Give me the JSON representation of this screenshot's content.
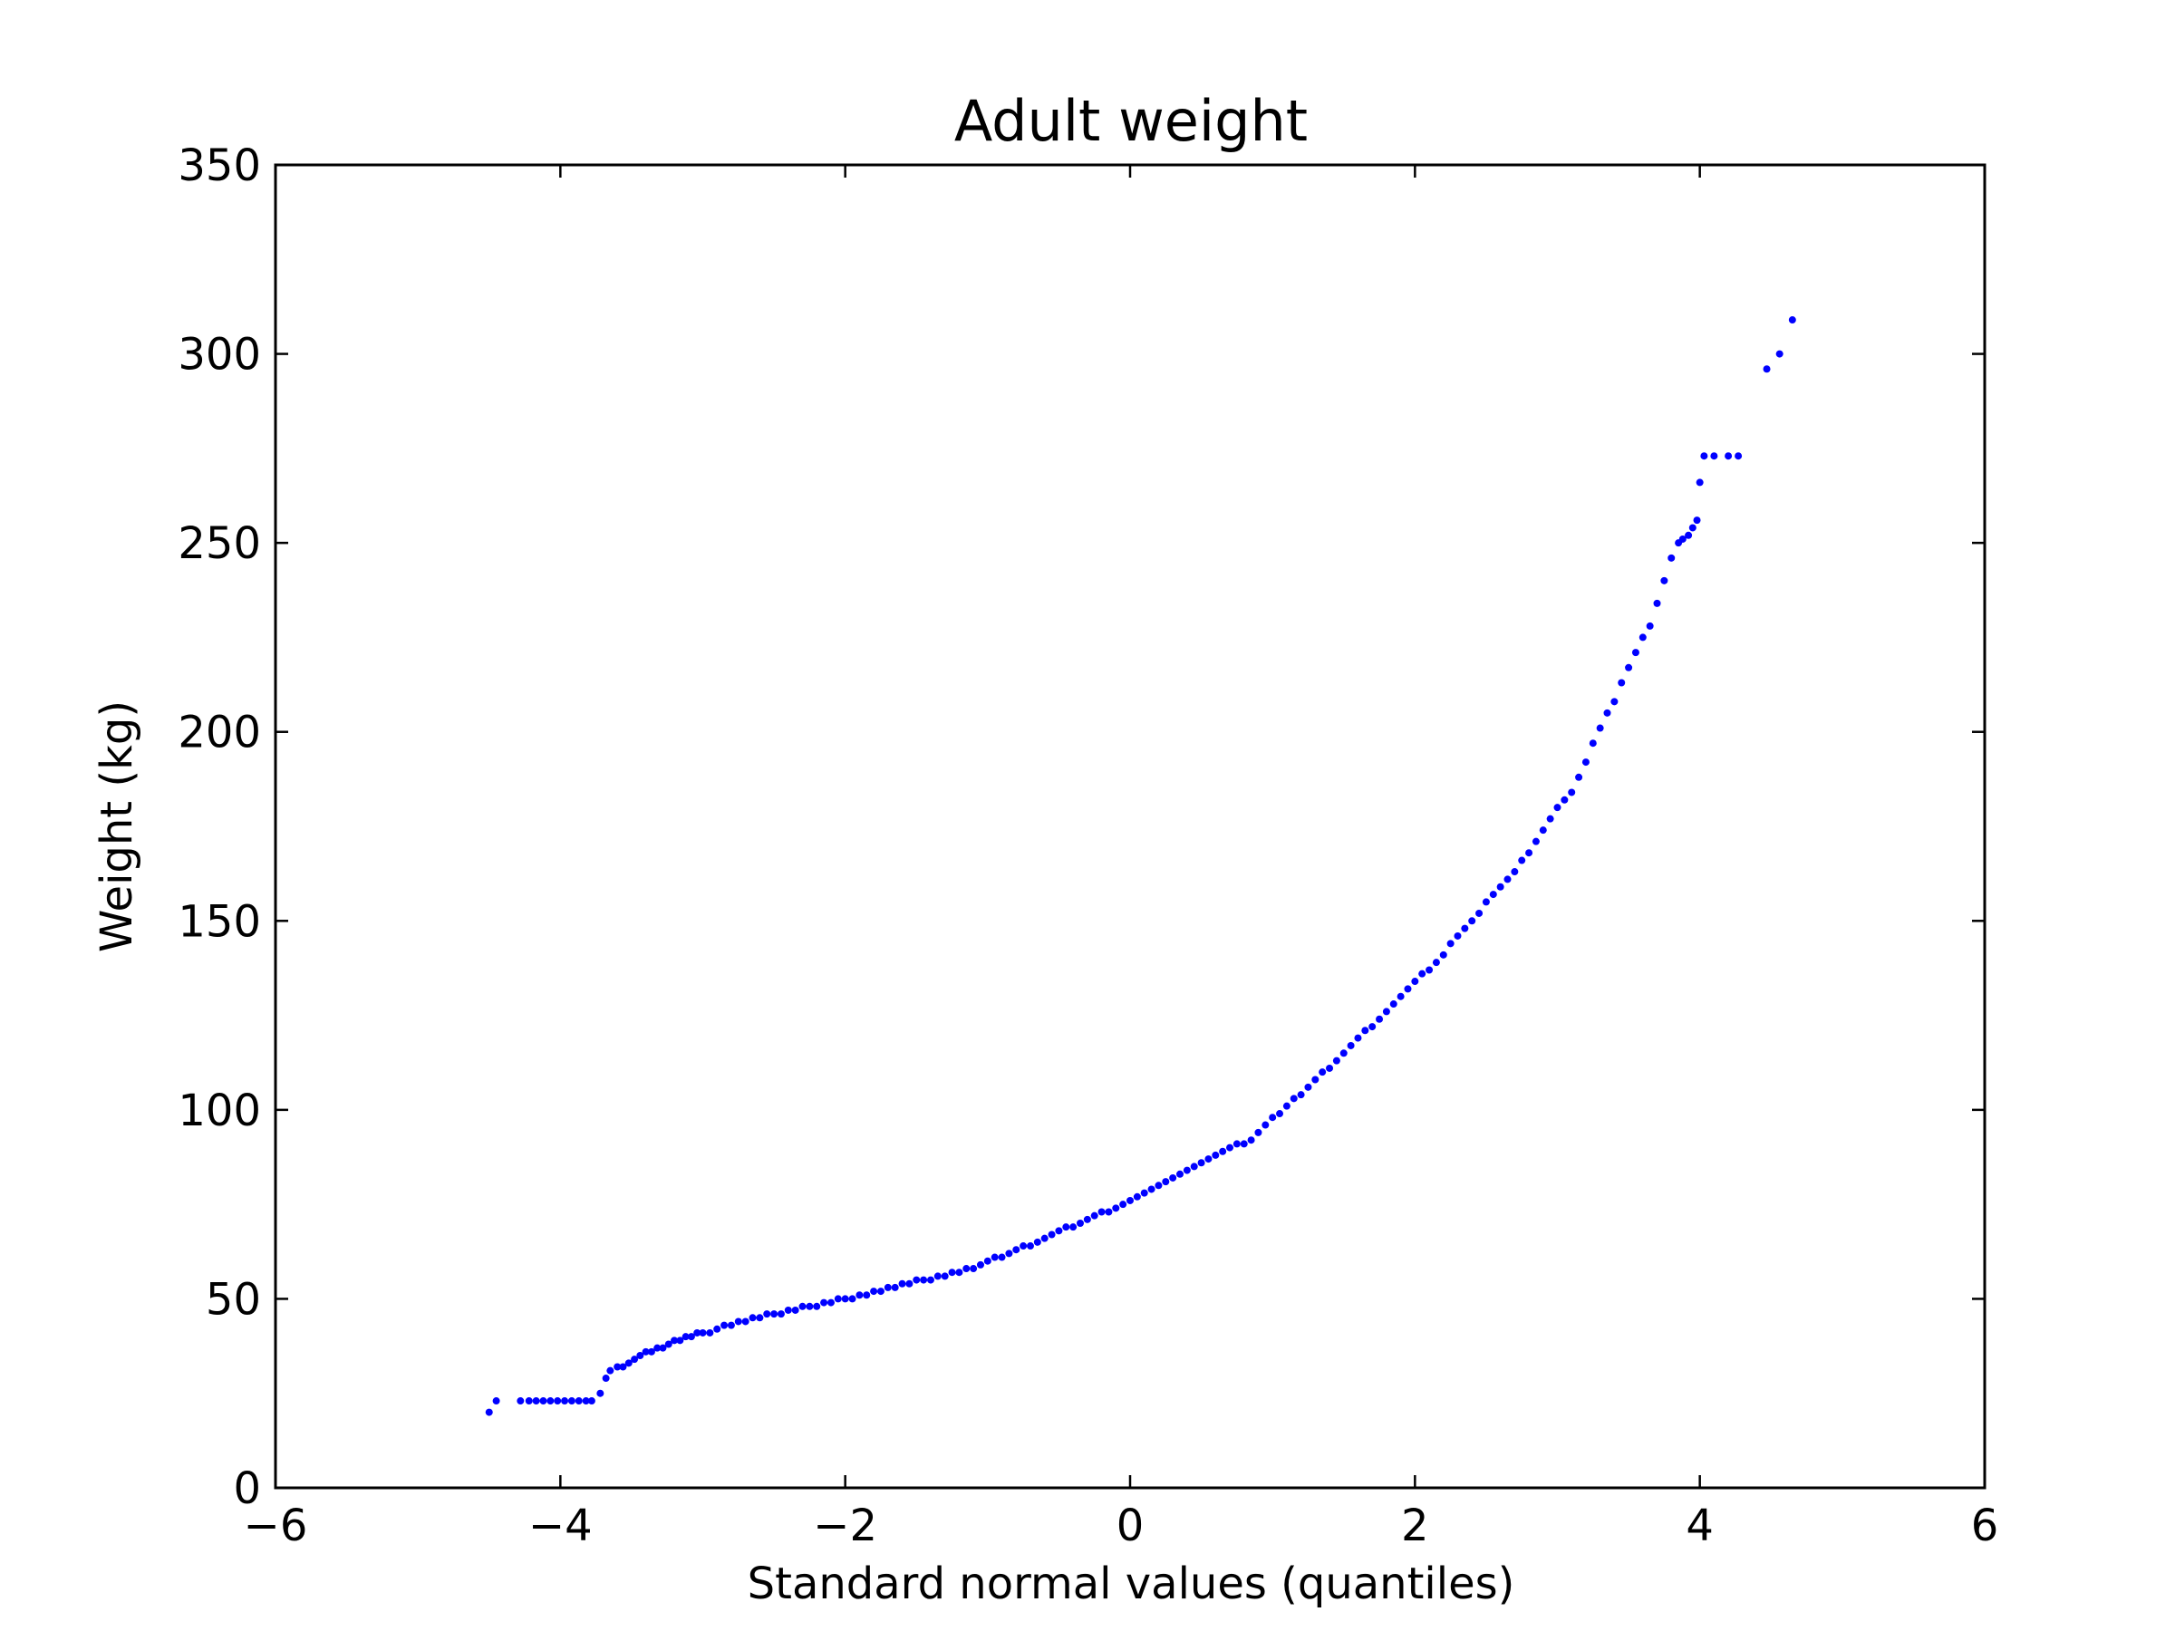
{
  "chart_data": {
    "type": "scatter",
    "title": "Adult weight",
    "xlabel": "Standard normal values (quantiles)",
    "ylabel": "Weight (kg)",
    "xlim": [
      -6,
      6
    ],
    "ylim": [
      0,
      350
    ],
    "x_ticks": [
      -6,
      -4,
      -2,
      0,
      2,
      4,
      6
    ],
    "x_tick_labels": [
      "−6",
      "−4",
      "−2",
      "0",
      "2",
      "4",
      "6"
    ],
    "y_ticks": [
      0,
      50,
      100,
      150,
      200,
      250,
      300,
      350
    ],
    "y_tick_labels": [
      "0",
      "50",
      "100",
      "150",
      "200",
      "250",
      "300",
      "350"
    ],
    "grid": false,
    "legend": "none",
    "marker_color": "#0000ff",
    "series": [
      {
        "x": [
          -4.5,
          -4.45,
          -4.28,
          -4.22,
          -4.17,
          -4.12,
          -4.07,
          -4.02,
          -3.97,
          -3.92,
          -3.87,
          -3.82,
          -3.78,
          -3.72,
          -3.68,
          -3.65,
          -3.6,
          -3.56,
          -3.52,
          -3.48,
          -3.44,
          -3.4,
          -3.36,
          -3.32,
          -3.28,
          -3.24,
          -3.2,
          -3.16,
          -3.12,
          -3.08,
          -3.04,
          -3.0,
          -2.95,
          -2.9,
          -2.85,
          -2.8,
          -2.75,
          -2.7,
          -2.65,
          -2.6,
          -2.55,
          -2.5,
          -2.45,
          -2.4,
          -2.35,
          -2.3,
          -2.25,
          -2.2,
          -2.15,
          -2.1,
          -2.05,
          -2.0,
          -1.95,
          -1.9,
          -1.85,
          -1.8,
          -1.75,
          -1.7,
          -1.65,
          -1.6,
          -1.55,
          -1.5,
          -1.45,
          -1.4,
          -1.35,
          -1.3,
          -1.25,
          -1.2,
          -1.15,
          -1.1,
          -1.05,
          -1.0,
          -0.95,
          -0.9,
          -0.85,
          -0.8,
          -0.75,
          -0.7,
          -0.65,
          -0.6,
          -0.55,
          -0.5,
          -0.45,
          -0.4,
          -0.35,
          -0.3,
          -0.25,
          -0.2,
          -0.15,
          -0.1,
          -0.05,
          0.0,
          0.05,
          0.1,
          0.15,
          0.2,
          0.25,
          0.3,
          0.35,
          0.4,
          0.45,
          0.5,
          0.55,
          0.6,
          0.65,
          0.7,
          0.75,
          0.8,
          0.85,
          0.9,
          0.95,
          1.0,
          1.05,
          1.1,
          1.15,
          1.2,
          1.25,
          1.3,
          1.35,
          1.4,
          1.45,
          1.5,
          1.55,
          1.6,
          1.65,
          1.7,
          1.75,
          1.8,
          1.85,
          1.9,
          1.95,
          2.0,
          2.05,
          2.1,
          2.15,
          2.2,
          2.25,
          2.3,
          2.35,
          2.4,
          2.45,
          2.5,
          2.55,
          2.6,
          2.65,
          2.7,
          2.75,
          2.8,
          2.85,
          2.9,
          2.95,
          3.0,
          3.05,
          3.1,
          3.15,
          3.2,
          3.25,
          3.3,
          3.35,
          3.4,
          3.45,
          3.5,
          3.55,
          3.6,
          3.65,
          3.7,
          3.75,
          3.8,
          3.85,
          3.88,
          3.92,
          3.95,
          3.98,
          4.0,
          4.03,
          4.1,
          4.2,
          4.27,
          4.47,
          4.56,
          4.65
        ],
        "y": [
          20,
          23,
          23,
          23,
          23,
          23,
          23,
          23,
          23,
          23,
          23,
          23,
          23,
          25,
          29,
          31,
          32,
          32,
          33,
          34,
          35,
          36,
          36,
          37,
          37,
          38,
          39,
          39,
          40,
          40,
          41,
          41,
          41,
          42,
          43,
          43,
          44,
          44,
          45,
          45,
          46,
          46,
          46,
          47,
          47,
          48,
          48,
          48,
          49,
          49,
          50,
          50,
          50,
          51,
          51,
          52,
          52,
          53,
          53,
          54,
          54,
          55,
          55,
          55,
          56,
          56,
          57,
          57,
          58,
          58,
          59,
          60,
          61,
          61,
          62,
          63,
          64,
          64,
          65,
          66,
          67,
          68,
          69,
          69,
          70,
          71,
          72,
          73,
          73,
          74,
          75,
          76,
          77,
          78,
          79,
          80,
          81,
          82,
          83,
          84,
          85,
          86,
          87,
          88,
          89,
          90,
          91,
          91,
          92,
          94,
          96,
          98,
          99,
          101,
          103,
          104,
          106,
          108,
          110,
          111,
          113,
          115,
          117,
          119,
          121,
          122,
          124,
          126,
          128,
          130,
          132,
          134,
          136,
          137,
          139,
          141,
          144,
          146,
          148,
          150,
          152,
          155,
          157,
          159,
          161,
          163,
          166,
          168,
          171,
          174,
          177,
          180,
          182,
          184,
          188,
          192,
          197,
          201,
          205,
          208,
          213,
          217,
          221,
          225,
          228,
          234,
          240,
          246,
          250,
          251,
          252,
          254,
          256,
          266,
          273,
          273,
          273,
          273,
          296,
          300,
          309
        ]
      }
    ]
  }
}
